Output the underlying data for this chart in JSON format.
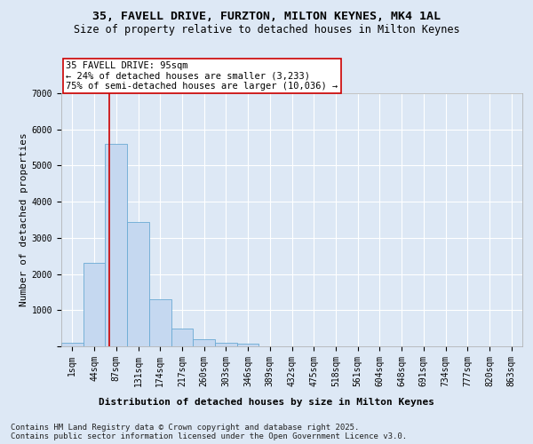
{
  "title1": "35, FAVELL DRIVE, FURZTON, MILTON KEYNES, MK4 1AL",
  "title2": "Size of property relative to detached houses in Milton Keynes",
  "xlabel": "Distribution of detached houses by size in Milton Keynes",
  "ylabel": "Number of detached properties",
  "bin_labels": [
    "1sqm",
    "44sqm",
    "87sqm",
    "131sqm",
    "174sqm",
    "217sqm",
    "260sqm",
    "303sqm",
    "346sqm",
    "389sqm",
    "432sqm",
    "475sqm",
    "518sqm",
    "561sqm",
    "604sqm",
    "648sqm",
    "691sqm",
    "734sqm",
    "777sqm",
    "820sqm",
    "863sqm"
  ],
  "bin_values": [
    100,
    2300,
    5600,
    3450,
    1300,
    500,
    200,
    100,
    75,
    0,
    0,
    0,
    0,
    0,
    0,
    0,
    0,
    0,
    0,
    0,
    0
  ],
  "bar_color": "#c5d8f0",
  "bar_edge_color": "#6aaad4",
  "vline_color": "#cc0000",
  "annotation_text": "35 FAVELL DRIVE: 95sqm\n← 24% of detached houses are smaller (3,233)\n75% of semi-detached houses are larger (10,036) →",
  "annotation_box_color": "#ffffff",
  "annotation_box_edge": "#cc0000",
  "background_color": "#dde8f5",
  "plot_bg_color": "#dde8f5",
  "grid_color": "#ffffff",
  "ylim": [
    0,
    7000
  ],
  "yticks": [
    0,
    1000,
    2000,
    3000,
    4000,
    5000,
    6000,
    7000
  ],
  "footer1": "Contains HM Land Registry data © Crown copyright and database right 2025.",
  "footer2": "Contains public sector information licensed under the Open Government Licence v3.0.",
  "title1_fontsize": 9.5,
  "title2_fontsize": 8.5,
  "axis_label_fontsize": 8,
  "tick_fontsize": 7,
  "annotation_fontsize": 7.5,
  "footer_fontsize": 6.5
}
